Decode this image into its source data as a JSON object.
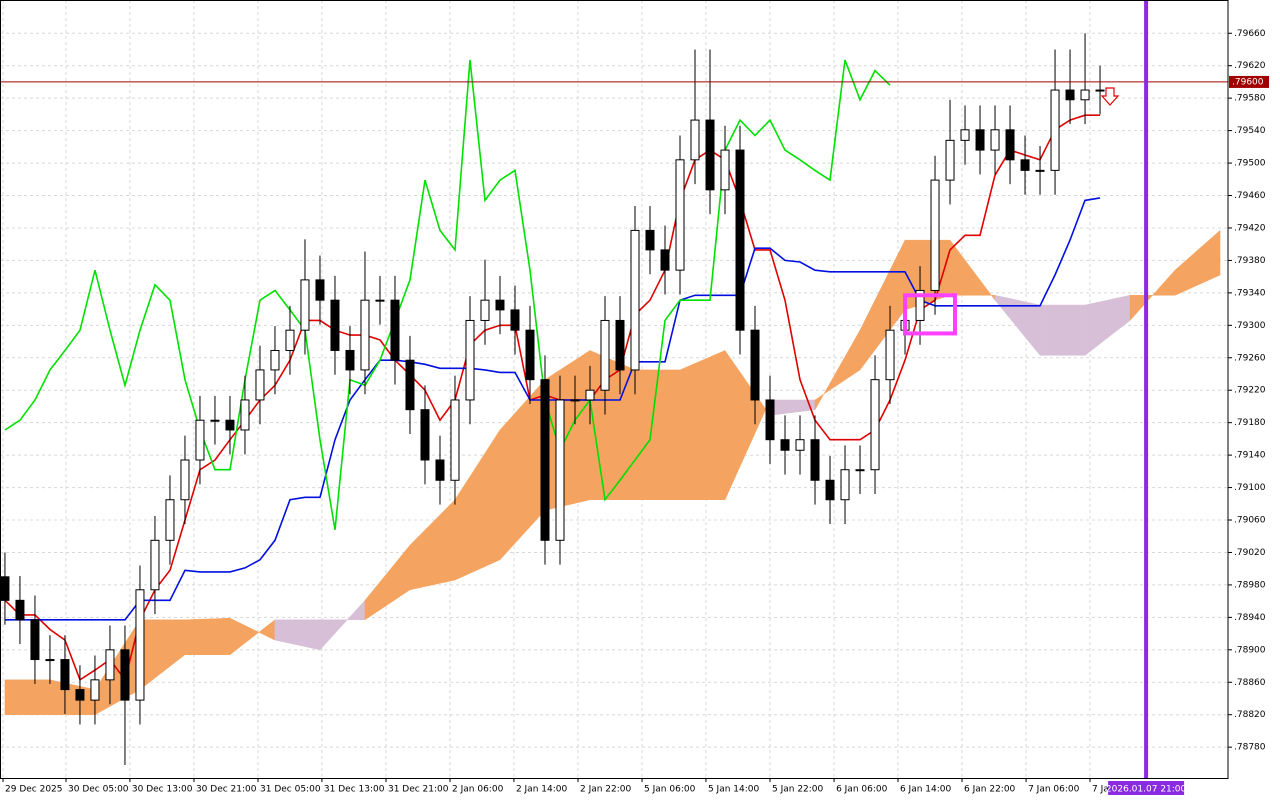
{
  "chart_data": {
    "type": "candlestick",
    "open": [
      0.7899,
      0.78961,
      0.78937,
      0.78888,
      0.78888,
      0.78851,
      0.78838,
      0.78863,
      0.789,
      0.78838,
      0.78974,
      0.79035,
      0.79085,
      0.79134,
      0.79183,
      0.79183,
      0.79171,
      0.79208,
      0.79245,
      0.79269,
      0.79294,
      0.79356,
      0.79331,
      0.79269,
      0.79245,
      0.79331,
      0.79331,
      0.79257,
      0.79196,
      0.79134,
      0.79109,
      0.79208,
      0.79306,
      0.79331,
      0.79319,
      0.79294,
      0.79233,
      0.79035,
      0.79208,
      0.79208,
      0.7922,
      0.79306,
      0.79245,
      0.79417,
      0.79393,
      0.79368,
      0.79504,
      0.79553,
      0.79467,
      0.79516,
      0.79294,
      0.79208,
      0.79159,
      0.79146,
      0.79159,
      0.79109,
      0.79085,
      0.79122,
      0.79122,
      0.79233,
      0.79294,
      0.79306,
      0.79343,
      0.79479,
      0.79528,
      0.79541,
      0.79516,
      0.79541,
      0.79504,
      0.79491,
      0.79491,
      0.7959,
      0.79578,
      0.7959
    ],
    "high": [
      0.7902,
      0.78991,
      0.78967,
      0.78918,
      0.78918,
      0.78881,
      0.78893,
      0.7893,
      0.7893,
      0.79004,
      0.79065,
      0.79115,
      0.79164,
      0.79213,
      0.79213,
      0.79213,
      0.79238,
      0.79275,
      0.79299,
      0.79324,
      0.79406,
      0.79386,
      0.79361,
      0.79299,
      0.79391,
      0.79361,
      0.79361,
      0.79287,
      0.79226,
      0.79164,
      0.79238,
      0.79336,
      0.79381,
      0.79361,
      0.79349,
      0.79324,
      0.79263,
      0.79238,
      0.79238,
      0.7925,
      0.79336,
      0.79336,
      0.79447,
      0.79447,
      0.79423,
      0.79534,
      0.7964,
      0.7964,
      0.79546,
      0.79546,
      0.79324,
      0.79238,
      0.79189,
      0.79189,
      0.79189,
      0.79139,
      0.79152,
      0.79152,
      0.79263,
      0.79324,
      0.79336,
      0.79373,
      0.79509,
      0.79578,
      0.79571,
      0.79571,
      0.79571,
      0.79571,
      0.79534,
      0.79521,
      0.7964,
      0.7964,
      0.7966,
      0.7962
    ],
    "low": [
      0.78931,
      0.78907,
      0.78858,
      0.78858,
      0.78821,
      0.78808,
      0.78808,
      0.78833,
      0.78758,
      0.78808,
      0.78944,
      0.79005,
      0.79055,
      0.79104,
      0.79153,
      0.79141,
      0.79141,
      0.79178,
      0.79215,
      0.79239,
      0.79264,
      0.79301,
      0.79239,
      0.79215,
      0.79215,
      0.79301,
      0.79227,
      0.79166,
      0.79104,
      0.79079,
      0.79079,
      0.79178,
      0.79276,
      0.79289,
      0.79264,
      0.79203,
      0.79005,
      0.79005,
      0.79178,
      0.79178,
      0.7919,
      0.79215,
      0.79215,
      0.79363,
      0.79338,
      0.79338,
      0.79474,
      0.79437,
      0.79437,
      0.79264,
      0.79178,
      0.79129,
      0.79116,
      0.79116,
      0.79079,
      0.79055,
      0.79055,
      0.79092,
      0.79092,
      0.79203,
      0.79264,
      0.79276,
      0.79313,
      0.79449,
      0.79498,
      0.79486,
      0.79486,
      0.79474,
      0.79461,
      0.79461,
      0.79461,
      0.79548,
      0.79548,
      0.7956
    ],
    "close": [
      0.78961,
      0.78937,
      0.78888,
      0.78888,
      0.78851,
      0.78838,
      0.78863,
      0.789,
      0.78838,
      0.78974,
      0.79035,
      0.79085,
      0.79134,
      0.79183,
      0.79183,
      0.79171,
      0.79208,
      0.79245,
      0.79269,
      0.79294,
      0.79356,
      0.79331,
      0.79269,
      0.79245,
      0.79331,
      0.79331,
      0.79257,
      0.79196,
      0.79134,
      0.79109,
      0.79208,
      0.79306,
      0.79331,
      0.79319,
      0.79294,
      0.79233,
      0.79035,
      0.79208,
      0.79208,
      0.7922,
      0.79306,
      0.79245,
      0.79417,
      0.79393,
      0.79368,
      0.79504,
      0.79553,
      0.79467,
      0.79516,
      0.79294,
      0.79208,
      0.79159,
      0.79146,
      0.79159,
      0.79109,
      0.79085,
      0.79122,
      0.79122,
      0.79233,
      0.79294,
      0.79306,
      0.79343,
      0.79479,
      0.79528,
      0.79541,
      0.79516,
      0.79541,
      0.79504,
      0.79491,
      0.79491,
      0.7959,
      0.79578,
      0.7959,
      0.7959
    ],
    "up_color": "#ffffff",
    "down_color": "#000000",
    "overlays": [
      {
        "color": "#e00000",
        "values": [
          0.78961,
          0.78943,
          0.78943,
          0.78925,
          0.78912,
          0.78863,
          0.78875,
          0.78888,
          0.78863,
          0.78937,
          0.78974,
          0.78998,
          0.7906,
          0.79122,
          0.79134,
          0.79159,
          0.79183,
          0.79208,
          0.79226,
          0.79257,
          0.79306,
          0.79306,
          0.79294,
          0.79288,
          0.79288,
          0.79282,
          0.79257,
          0.79239,
          0.7922,
          0.79183,
          0.79208,
          0.79276,
          0.79294,
          0.793,
          0.793,
          0.79208,
          0.79214,
          0.79208,
          0.79208,
          0.79208,
          0.79233,
          0.79245,
          0.79313,
          0.79331,
          0.79368,
          0.79454,
          0.79504,
          0.79516,
          0.79504,
          0.79454,
          0.79393,
          0.79393,
          0.79331,
          0.79233,
          0.79183,
          0.79159,
          0.79159,
          0.79159,
          0.79171,
          0.79208,
          0.79257,
          0.79319,
          0.79331,
          0.79393,
          0.79411,
          0.79411,
          0.79485,
          0.79516,
          0.7951,
          0.79504,
          0.79541,
          0.79553,
          0.79559,
          0.79559
        ]
      },
      {
        "color": "#0010e0",
        "values": [
          0.78937,
          0.78937,
          0.78937,
          0.78937,
          0.78937,
          0.78937,
          0.78937,
          0.78937,
          0.78937,
          0.78961,
          0.78961,
          0.78961,
          0.78998,
          0.78996,
          0.78996,
          0.78996,
          0.79001,
          0.79011,
          0.79035,
          0.79085,
          0.79088,
          0.79088,
          0.79159,
          0.79208,
          0.79233,
          0.79257,
          0.79257,
          0.79255,
          0.79252,
          0.79247,
          0.79247,
          0.79247,
          0.79245,
          0.79242,
          0.79242,
          0.79208,
          0.79208,
          0.79208,
          0.79208,
          0.79208,
          0.79208,
          0.79208,
          0.79255,
          0.79255,
          0.79255,
          0.79331,
          0.79337,
          0.79337,
          0.79337,
          0.79337,
          0.79395,
          0.79395,
          0.7938,
          0.79378,
          0.79368,
          0.79366,
          0.79366,
          0.79366,
          0.79366,
          0.79366,
          0.79366,
          0.79331,
          0.79324,
          0.79324,
          0.79324,
          0.79324,
          0.79324,
          0.79324,
          0.79324,
          0.79324,
          0.79362,
          0.79405,
          0.79454,
          0.79457
        ]
      },
      {
        "color": "#00e000",
        "values": [
          0.79171,
          0.79183,
          0.79208,
          0.79245,
          0.79269,
          0.79294,
          0.79368,
          0.79294,
          0.79226,
          0.79294,
          0.7935,
          0.79331,
          0.79233,
          0.79171,
          0.79122,
          0.79122,
          0.79233,
          0.79331,
          0.79343,
          0.79319,
          0.79294,
          0.79159,
          0.79048,
          0.79233,
          0.79226,
          0.79257,
          0.79306,
          0.79356,
          0.79479,
          0.79417,
          0.79393,
          0.79627,
          0.79454,
          0.79479,
          0.79491,
          0.79368,
          0.79208,
          0.79146,
          0.79183,
          0.79208,
          0.79085,
          0.79109,
          0.79134,
          0.79159,
          0.79306,
          0.79331,
          0.79331,
          0.79331,
          0.79516,
          0.79553,
          0.79534,
          0.79553,
          0.79516,
          0.79504,
          0.79491,
          0.79479,
          0.79627,
          0.79578,
          0.79614,
          0.79596,
          null,
          null,
          null,
          null,
          null,
          null,
          null,
          null,
          null,
          null,
          null,
          null,
          null,
          null
        ]
      }
    ],
    "cloud": {
      "up_color": "#f4a460",
      "down_color": "#d8bfd8",
      "x": [
        0,
        3,
        6,
        9,
        12,
        15,
        18,
        21,
        24,
        27,
        30,
        33,
        36,
        39,
        42,
        45,
        48,
        51,
        54,
        57,
        60,
        63,
        66,
        69,
        72,
        75,
        78,
        81
      ],
      "span_a": [
        0.78863,
        0.78863,
        0.78851,
        0.78937,
        0.78937,
        0.78939,
        0.78912,
        0.789,
        0.78961,
        0.79029,
        0.79085,
        0.79171,
        0.79233,
        0.79269,
        0.79245,
        0.79245,
        0.79269,
        0.79189,
        0.79196,
        0.79294,
        0.79405,
        0.79405,
        0.79331,
        0.79263,
        0.79263,
        0.79306,
        0.79368,
        0.79417
      ],
      "span_b": [
        0.7882,
        0.7882,
        0.7882,
        0.78851,
        0.78894,
        0.78894,
        0.78937,
        0.78937,
        0.78937,
        0.78974,
        0.78986,
        0.79011,
        0.79072,
        0.79085,
        0.79085,
        0.79085,
        0.79085,
        0.79208,
        0.79208,
        0.79245,
        0.79319,
        0.79337,
        0.79337,
        0.79325,
        0.79325,
        0.79337,
        0.79337,
        0.79362
      ]
    },
    "price_line": {
      "value": 0.796,
      "label": ".79600",
      "color": "#a00000"
    },
    "time_marker": {
      "value": 76.07,
      "label": "2026.01.07 21:00",
      "color": "#8a2be2"
    },
    "highlight": {
      "x": [
        60,
        63.33
      ],
      "y": [
        0.7929,
        0.79337
      ],
      "color": "#ff40ff"
    },
    "xlim": [
      -0.33,
      81.53
    ],
    "ylim": [
      0.78742,
      0.79701
    ],
    "grid": true,
    "yticks": [
      {
        "value": 0.7878,
        "label": ".78780"
      },
      {
        "value": 0.7882,
        "label": ".78820"
      },
      {
        "value": 0.7886,
        "label": ".78860"
      },
      {
        "value": 0.789,
        "label": ".78900"
      },
      {
        "value": 0.7894,
        "label": ".78940"
      },
      {
        "value": 0.7898,
        "label": ".78980"
      },
      {
        "value": 0.7902,
        "label": ".79020"
      },
      {
        "value": 0.7906,
        "label": ".79060"
      },
      {
        "value": 0.791,
        "label": ".79100"
      },
      {
        "value": 0.7914,
        "label": ".79140"
      },
      {
        "value": 0.7918,
        "label": ".79180"
      },
      {
        "value": 0.7922,
        "label": ".79220"
      },
      {
        "value": 0.7926,
        "label": ".79260"
      },
      {
        "value": 0.793,
        "label": ".79300"
      },
      {
        "value": 0.7934,
        "label": ".79340"
      },
      {
        "value": 0.7938,
        "label": ".79380"
      },
      {
        "value": 0.7942,
        "label": ".79420"
      },
      {
        "value": 0.7946,
        "label": ".79460"
      },
      {
        "value": 0.795,
        "label": ".79500"
      },
      {
        "value": 0.7954,
        "label": ".79540"
      },
      {
        "value": 0.7958,
        "label": ".79580"
      },
      {
        "value": 0.7962,
        "label": ".79620"
      },
      {
        "value": 0.7966,
        "label": ".79660"
      }
    ],
    "xticks": [
      {
        "value": -0.13,
        "label": "29 Dec 2025"
      },
      {
        "value": 4.07,
        "label": "30 Dec 05:00"
      },
      {
        "value": 8.33,
        "label": "30 Dec 13:00"
      },
      {
        "value": 12.6,
        "label": "30 Dec 21:00"
      },
      {
        "value": 16.87,
        "label": "31 Dec 05:00"
      },
      {
        "value": 21.13,
        "label": "31 Dec 13:00"
      },
      {
        "value": 25.4,
        "label": "31 Dec 21:00"
      },
      {
        "value": 29.67,
        "label": "2 Jan 06:00"
      },
      {
        "value": 33.93,
        "label": "2 Jan 14:00"
      },
      {
        "value": 38.2,
        "label": "2 Jan 22:00"
      },
      {
        "value": 42.47,
        "label": "5 Jan 06:00"
      },
      {
        "value": 46.73,
        "label": "5 Jan 14:00"
      },
      {
        "value": 51,
        "label": "5 Jan 22:00"
      },
      {
        "value": 55.27,
        "label": "6 Jan 06:00"
      },
      {
        "value": 59.53,
        "label": "6 Jan 14:00"
      },
      {
        "value": 63.8,
        "label": "6 Jan 22:00"
      },
      {
        "value": 68.07,
        "label": "7 Jan 06:00"
      },
      {
        "value": 72.33,
        "label": "7 Ja"
      }
    ]
  }
}
